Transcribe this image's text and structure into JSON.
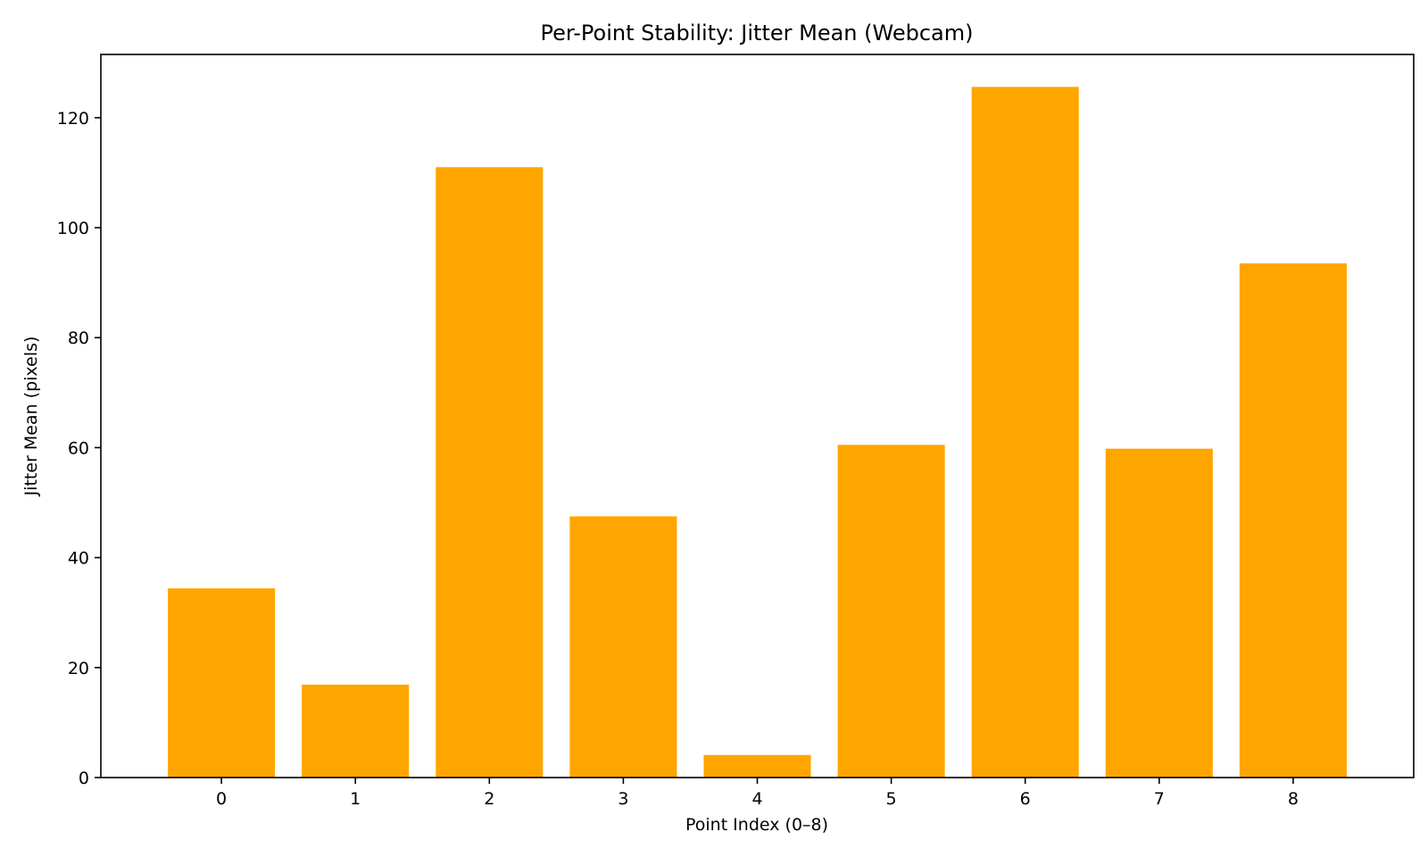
{
  "chart_data": {
    "type": "bar",
    "title": "Per-Point Stability: Jitter Mean (Webcam)",
    "xlabel": "Point Index (0–8)",
    "ylabel": "Jitter Mean (pixels)",
    "categories": [
      "0",
      "1",
      "2",
      "3",
      "4",
      "5",
      "6",
      "7",
      "8"
    ],
    "values": [
      34.4,
      16.9,
      111.0,
      47.5,
      4.1,
      60.5,
      125.6,
      59.8,
      93.5
    ],
    "ylim": [
      0,
      131.5
    ],
    "yticks": [
      0,
      20,
      40,
      60,
      80,
      100,
      120
    ],
    "grid": false,
    "legend": "none",
    "bar_color": "#FFA500"
  }
}
